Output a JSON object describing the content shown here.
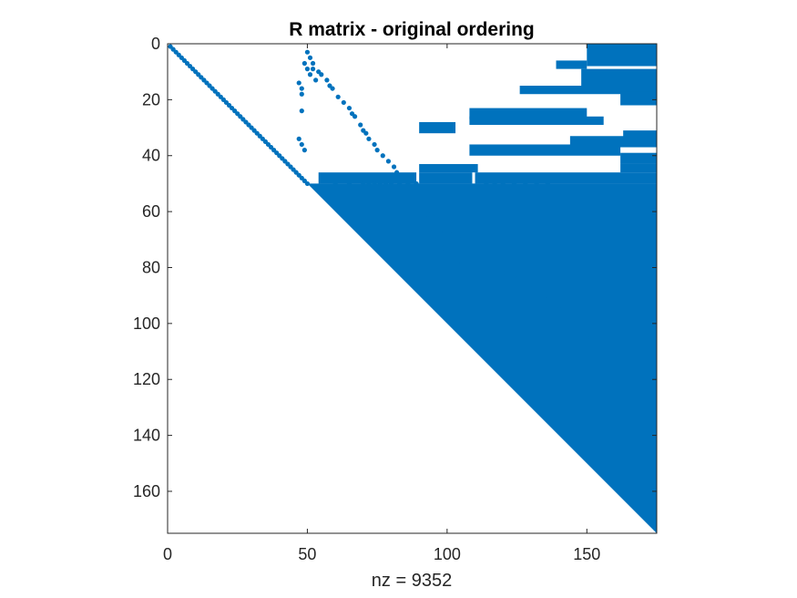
{
  "chart_data": {
    "type": "scatter",
    "subtype": "sparsity-pattern",
    "title": "R matrix - original ordering",
    "xlabel": "nz = 9352",
    "ylabel": "",
    "matrix_size": 175,
    "nz": 9352,
    "xlim": [
      0,
      175
    ],
    "ylim": [
      0,
      175
    ],
    "y_reversed": true,
    "grid": false,
    "legend": "none",
    "marker_color": "#0072BD",
    "axis_color": "#262626",
    "xticks": [
      0,
      50,
      100,
      150
    ],
    "xtick_labels": [
      "0",
      "50",
      "100",
      "150"
    ],
    "yticks": [
      0,
      20,
      40,
      60,
      80,
      100,
      120,
      140,
      160
    ],
    "ytick_labels": [
      "0",
      "20",
      "40",
      "60",
      "80",
      "100",
      "120",
      "140",
      "160"
    ],
    "diagonal": {
      "row_start": 1,
      "row_end": 50
    },
    "dense_upper_triangle": {
      "row_start": 50,
      "row_end": 175
    },
    "dense_blocks": [
      {
        "rows": [
          46,
          50
        ],
        "cols": [
          54,
          89
        ]
      },
      {
        "rows": [
          46,
          50
        ],
        "cols": [
          90,
          109
        ]
      },
      {
        "rows": [
          46,
          50
        ],
        "cols": [
          110,
          175
        ]
      },
      {
        "rows": [
          50,
          70
        ],
        "cols": [
          109,
          112
        ]
      },
      {
        "rows": [
          0,
          8
        ],
        "cols": [
          150,
          175
        ]
      },
      {
        "rows": [
          6,
          9
        ],
        "cols": [
          139,
          150
        ]
      },
      {
        "rows": [
          9,
          16
        ],
        "cols": [
          148,
          175
        ]
      },
      {
        "rows": [
          15,
          18
        ],
        "cols": [
          126,
          175
        ]
      },
      {
        "rows": [
          17,
          22
        ],
        "cols": [
          162,
          175
        ]
      },
      {
        "rows": [
          23,
          27
        ],
        "cols": [
          108,
          150
        ]
      },
      {
        "rows": [
          26,
          29
        ],
        "cols": [
          108,
          156
        ]
      },
      {
        "rows": [
          28,
          32
        ],
        "cols": [
          90,
          103
        ]
      },
      {
        "rows": [
          31,
          35
        ],
        "cols": [
          163,
          175
        ]
      },
      {
        "rows": [
          33,
          37
        ],
        "cols": [
          144,
          175
        ]
      },
      {
        "rows": [
          36,
          40
        ],
        "cols": [
          108,
          162
        ]
      },
      {
        "rows": [
          39,
          43
        ],
        "cols": [
          162,
          175
        ]
      },
      {
        "rows": [
          43,
          46
        ],
        "cols": [
          90,
          111
        ]
      },
      {
        "rows": [
          43,
          46
        ],
        "cols": [
          162,
          175
        ]
      }
    ],
    "scattered_points": [
      [
        3,
        50
      ],
      [
        5,
        51
      ],
      [
        7,
        52
      ],
      [
        9,
        52
      ],
      [
        10,
        54
      ],
      [
        11,
        55
      ],
      [
        13,
        57
      ],
      [
        15,
        58
      ],
      [
        16,
        59
      ],
      [
        19,
        61
      ],
      [
        21,
        63
      ],
      [
        23,
        65
      ],
      [
        25,
        66
      ],
      [
        26,
        67
      ],
      [
        29,
        69
      ],
      [
        31,
        70
      ],
      [
        32,
        71
      ],
      [
        34,
        72
      ],
      [
        36,
        74
      ],
      [
        38,
        75
      ],
      [
        40,
        77
      ],
      [
        42,
        79
      ],
      [
        44,
        81
      ],
      [
        46,
        82
      ],
      [
        7,
        49
      ],
      [
        9,
        50
      ],
      [
        11,
        51
      ],
      [
        13,
        53
      ],
      [
        14,
        47
      ],
      [
        16,
        48
      ],
      [
        18,
        48
      ],
      [
        24,
        48
      ],
      [
        34,
        47
      ],
      [
        36,
        48
      ],
      [
        38,
        49
      ],
      [
        50,
        60
      ],
      [
        50,
        65
      ],
      [
        50,
        70
      ],
      [
        50,
        72
      ],
      [
        50,
        74
      ],
      [
        50,
        76
      ],
      [
        50,
        78
      ],
      [
        50,
        80
      ],
      [
        50,
        83
      ],
      [
        50,
        86
      ],
      [
        50,
        89
      ],
      [
        50,
        114
      ],
      [
        50,
        117
      ],
      [
        50,
        120
      ],
      [
        50,
        124
      ],
      [
        50,
        128
      ],
      [
        50,
        132
      ],
      [
        50,
        136
      ],
      [
        61,
        93
      ],
      [
        62,
        95
      ],
      [
        63,
        97
      ],
      [
        64,
        94
      ],
      [
        66,
        95
      ],
      [
        67,
        101
      ],
      [
        68,
        98
      ],
      [
        69,
        104
      ],
      [
        71,
        96
      ],
      [
        73,
        99
      ],
      [
        75,
        101
      ],
      [
        77,
        103
      ],
      [
        79,
        105
      ],
      [
        81,
        112
      ],
      [
        82,
        120
      ],
      [
        84,
        125
      ],
      [
        86,
        130
      ],
      [
        90,
        135
      ],
      [
        95,
        140
      ],
      [
        100,
        146
      ],
      [
        105,
        150
      ]
    ]
  }
}
